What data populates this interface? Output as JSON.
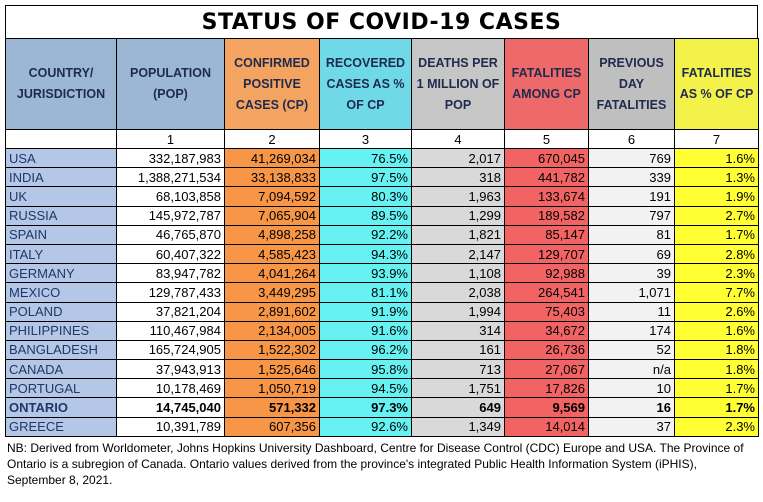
{
  "title": "STATUS OF COVID-19 CASES",
  "headers": [
    "COUNTRY/ JURISDICTION",
    "POPULATION (POP)",
    "CONFIRMED POSITIVE CASES (CP)",
    "RECOVERED CASES AS % OF CP",
    "DEATHS PER 1 MILLION OF POP",
    "FATALITIES AMONG CP",
    "PREVIOUS DAY FATALITIES",
    "FATALITIES AS % OF CP"
  ],
  "column_numbers": [
    "",
    "1",
    "2",
    "3",
    "4",
    "5",
    "6",
    "7"
  ],
  "rows": [
    {
      "name": "USA",
      "pop": "332,187,983",
      "cp": "41,269,034",
      "rec": "76.5%",
      "dpm": "2,017",
      "fat": "670,045",
      "prev": "769",
      "pct": "1.6%"
    },
    {
      "name": "INDIA",
      "pop": "1,388,271,534",
      "cp": "33,138,833",
      "rec": "97.5%",
      "dpm": "318",
      "fat": "441,782",
      "prev": "339",
      "pct": "1.3%"
    },
    {
      "name": "UK",
      "pop": "68,103,858",
      "cp": "7,094,592",
      "rec": "80.3%",
      "dpm": "1,963",
      "fat": "133,674",
      "prev": "191",
      "pct": "1.9%"
    },
    {
      "name": "RUSSIA",
      "pop": "145,972,787",
      "cp": "7,065,904",
      "rec": "89.5%",
      "dpm": "1,299",
      "fat": "189,582",
      "prev": "797",
      "pct": "2.7%"
    },
    {
      "name": "SPAIN",
      "pop": "46,765,870",
      "cp": "4,898,258",
      "rec": "92.2%",
      "dpm": "1,821",
      "fat": "85,147",
      "prev": "81",
      "pct": "1.7%"
    },
    {
      "name": "ITALY",
      "pop": "60,407,322",
      "cp": "4,585,423",
      "rec": "94.3%",
      "dpm": "2,147",
      "fat": "129,707",
      "prev": "69",
      "pct": "2.8%"
    },
    {
      "name": "GERMANY",
      "pop": "83,947,782",
      "cp": "4,041,264",
      "rec": "93.9%",
      "dpm": "1,108",
      "fat": "92,988",
      "prev": "39",
      "pct": "2.3%"
    },
    {
      "name": "MEXICO",
      "pop": "129,787,433",
      "cp": "3,449,295",
      "rec": "81.1%",
      "dpm": "2,038",
      "fat": "264,541",
      "prev": "1,071",
      "pct": "7.7%"
    },
    {
      "name": "POLAND",
      "pop": "37,821,204",
      "cp": "2,891,602",
      "rec": "91.9%",
      "dpm": "1,994",
      "fat": "75,403",
      "prev": "11",
      "pct": "2.6%"
    },
    {
      "name": "PHILIPPINES",
      "pop": "110,467,984",
      "cp": "2,134,005",
      "rec": "91.6%",
      "dpm": "314",
      "fat": "34,672",
      "prev": "174",
      "pct": "1.6%"
    },
    {
      "name": "BANGLADESH",
      "pop": "165,724,905",
      "cp": "1,522,302",
      "rec": "96.2%",
      "dpm": "161",
      "fat": "26,736",
      "prev": "52",
      "pct": "1.8%"
    },
    {
      "name": "CANADA",
      "pop": "37,943,913",
      "cp": "1,525,646",
      "rec": "95.8%",
      "dpm": "713",
      "fat": "27,067",
      "prev": "n/a",
      "pct": "1.8%"
    },
    {
      "name": "PORTUGAL",
      "pop": "10,178,469",
      "cp": "1,050,719",
      "rec": "94.5%",
      "dpm": "1,751",
      "fat": "17,826",
      "prev": "10",
      "pct": "1.7%"
    },
    {
      "name": "ONTARIO",
      "pop": "14,745,040",
      "cp": "571,332",
      "rec": "97.3%",
      "dpm": "649",
      "fat": "9,569",
      "prev": "16",
      "pct": "1.7%",
      "bold": true
    },
    {
      "name": "GREECE",
      "pop": "10,391,789",
      "cp": "607,356",
      "rec": "92.6%",
      "dpm": "1,349",
      "fat": "14,014",
      "prev": "37",
      "pct": "2.3%"
    }
  ],
  "note": "NB: Derived from Worldometer, Johns Hopkins University Dashboard, Centre for Disease Control (CDC) Europe and USA. The Province of Ontario is a subregion of Canada. Ontario values derived from the province's integrated Public Health Information System (iPHIS), September 8, 2021.",
  "colors": {
    "country": "#b4c7e7",
    "confirmed": "#f79646",
    "recovered": "#66f2f2",
    "deaths_per_million": "#d9d9d9",
    "fatalities": "#f26464",
    "previous_day": "#f2f2f2",
    "fatality_pct": "#ffff33"
  }
}
